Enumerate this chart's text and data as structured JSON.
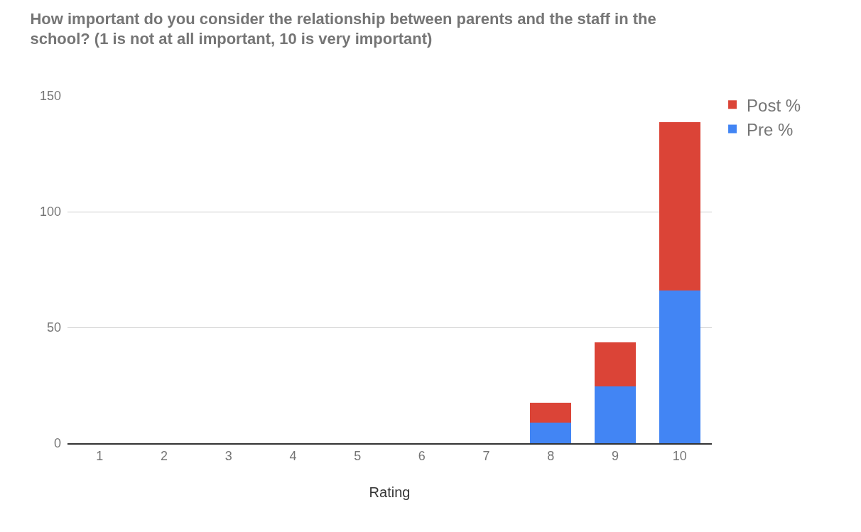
{
  "chart_data": {
    "type": "bar",
    "stacked": true,
    "title": "How important do you consider the relationship between parents and the staff in the school? (1 is not at all important, 10 is very important)",
    "xlabel": "Rating",
    "categories": [
      "1",
      "2",
      "3",
      "4",
      "5",
      "6",
      "7",
      "8",
      "9",
      "10"
    ],
    "series": [
      {
        "name": "Pre %",
        "color": "#4285f4",
        "values": [
          0,
          0,
          0,
          0,
          0,
          0,
          0,
          8.8,
          24.5,
          66
        ]
      },
      {
        "name": "Post %",
        "color": "#db4437",
        "values": [
          0,
          0,
          0,
          0,
          0,
          0,
          0,
          8.8,
          19,
          72.8
        ]
      }
    ],
    "ylim": [
      0,
      150
    ],
    "yticks": [
      0,
      50,
      100,
      150
    ],
    "grid": "y",
    "legend": "top right"
  }
}
